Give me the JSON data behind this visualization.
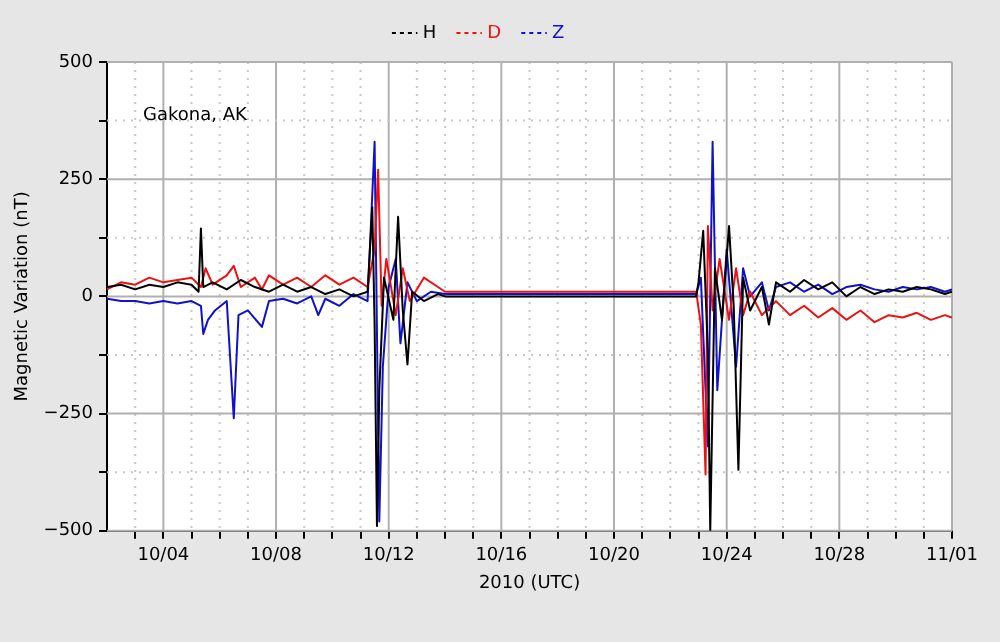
{
  "chart_data": {
    "type": "line",
    "xlabel": "2010 (UTC)",
    "ylabel": "Magnetic Variation (nT)",
    "annotations": [
      "Gakona, AK"
    ],
    "xlim": [
      "2010-10-02",
      "2010-11-01"
    ],
    "xticks": [
      {
        "value": "2010-10-03",
        "label": null
      },
      {
        "value": "2010-10-04",
        "label": "10/04"
      },
      {
        "value": "2010-10-05",
        "label": null
      },
      {
        "value": "2010-10-06",
        "label": null
      },
      {
        "value": "2010-10-07",
        "label": null
      },
      {
        "value": "2010-10-08",
        "label": "10/08"
      },
      {
        "value": "2010-10-09",
        "label": null
      },
      {
        "value": "2010-10-10",
        "label": null
      },
      {
        "value": "2010-10-11",
        "label": null
      },
      {
        "value": "2010-10-12",
        "label": "10/12"
      },
      {
        "value": "2010-10-13",
        "label": null
      },
      {
        "value": "2010-10-14",
        "label": null
      },
      {
        "value": "2010-10-15",
        "label": null
      },
      {
        "value": "2010-10-16",
        "label": "10/16"
      },
      {
        "value": "2010-10-17",
        "label": null
      },
      {
        "value": "2010-10-18",
        "label": null
      },
      {
        "value": "2010-10-19",
        "label": null
      },
      {
        "value": "2010-10-20",
        "label": "10/20"
      },
      {
        "value": "2010-10-21",
        "label": null
      },
      {
        "value": "2010-10-22",
        "label": null
      },
      {
        "value": "2010-10-23",
        "label": null
      },
      {
        "value": "2010-10-24",
        "label": "10/24"
      },
      {
        "value": "2010-10-25",
        "label": null
      },
      {
        "value": "2010-10-26",
        "label": null
      },
      {
        "value": "2010-10-27",
        "label": null
      },
      {
        "value": "2010-10-28",
        "label": "10/28"
      },
      {
        "value": "2010-10-29",
        "label": null
      },
      {
        "value": "2010-10-30",
        "label": null
      },
      {
        "value": "2010-10-31",
        "label": null
      },
      {
        "value": "2010-11-01",
        "label": "11/01"
      }
    ],
    "ylim": [
      -500,
      500
    ],
    "yticks": [
      {
        "value": -500,
        "label": "−500"
      },
      {
        "value": -375,
        "label": null
      },
      {
        "value": -250,
        "label": "−250"
      },
      {
        "value": -125,
        "label": null
      },
      0,
      {
        "value": 125,
        "label": null
      },
      250,
      {
        "value": 375,
        "label": null
      },
      500
    ],
    "grid": true,
    "legend": "top",
    "marker": "none",
    "line_style": "solid",
    "series": [
      {
        "name": "H",
        "color": "#000000",
        "x": [
          "2010-10-02T00:00",
          "2010-10-02T12:00",
          "2010-10-03T00:00",
          "2010-10-03T12:00",
          "2010-10-04T00:00",
          "2010-10-04T12:00",
          "2010-10-05T00:00",
          "2010-10-05T06:00",
          "2010-10-05T08:00",
          "2010-10-05T10:00",
          "2010-10-05T18:00",
          "2010-10-06T06:00",
          "2010-10-06T18:00",
          "2010-10-07T06:00",
          "2010-10-07T18:00",
          "2010-10-08T06:00",
          "2010-10-08T18:00",
          "2010-10-09T06:00",
          "2010-10-09T18:00",
          "2010-10-10T06:00",
          "2010-10-10T18:00",
          "2010-10-11T06:00",
          "2010-10-11T10:00",
          "2010-10-11T12:00",
          "2010-10-11T14:00",
          "2010-10-11T16:00",
          "2010-10-11T20:00",
          "2010-10-12T04:00",
          "2010-10-12T08:00",
          "2010-10-12T12:00",
          "2010-10-12T16:00",
          "2010-10-12T20:00",
          "2010-10-13T06:00",
          "2010-10-13T18:00",
          "2010-10-14T00:00",
          "2010-10-22T22:00",
          "2010-10-23T00:00",
          "2010-10-23T04:00",
          "2010-10-23T08:00",
          "2010-10-23T10:00",
          "2010-10-23T14:00",
          "2010-10-23T20:00",
          "2010-10-24T02:00",
          "2010-10-24T06:00",
          "2010-10-24T10:00",
          "2010-10-24T14:00",
          "2010-10-24T20:00",
          "2010-10-25T06:00",
          "2010-10-25T12:00",
          "2010-10-25T18:00",
          "2010-10-26T06:00",
          "2010-10-26T18:00",
          "2010-10-27T06:00",
          "2010-10-27T18:00",
          "2010-10-28T06:00",
          "2010-10-28T18:00",
          "2010-10-29T06:00",
          "2010-10-29T18:00",
          "2010-10-30T06:00",
          "2010-10-30T18:00",
          "2010-10-31T06:00",
          "2010-10-31T18:00",
          "2010-11-01T00:00"
        ],
        "values": [
          20,
          25,
          15,
          25,
          20,
          30,
          25,
          10,
          145,
          20,
          30,
          15,
          35,
          20,
          10,
          25,
          10,
          20,
          5,
          15,
          0,
          10,
          190,
          -60,
          -490,
          -200,
          40,
          -50,
          170,
          -30,
          -145,
          10,
          -10,
          5,
          0,
          0,
          30,
          140,
          -120,
          -500,
          60,
          -50,
          150,
          -20,
          -370,
          40,
          -30,
          20,
          -60,
          30,
          10,
          35,
          15,
          30,
          0,
          20,
          5,
          15,
          10,
          20,
          15,
          5,
          10
        ]
      },
      {
        "name": "D",
        "color": "#ee1111",
        "x": [
          "2010-10-02T00:00",
          "2010-10-02T12:00",
          "2010-10-03T00:00",
          "2010-10-03T12:00",
          "2010-10-04T00:00",
          "2010-10-04T12:00",
          "2010-10-05T00:00",
          "2010-10-05T08:00",
          "2010-10-05T12:00",
          "2010-10-05T18:00",
          "2010-10-06T06:00",
          "2010-10-06T12:00",
          "2010-10-06T18:00",
          "2010-10-07T06:00",
          "2010-10-07T12:00",
          "2010-10-07T18:00",
          "2010-10-08T06:00",
          "2010-10-08T18:00",
          "2010-10-09T06:00",
          "2010-10-09T18:00",
          "2010-10-10T06:00",
          "2010-10-10T18:00",
          "2010-10-11T06:00",
          "2010-10-11T12:00",
          "2010-10-11T15:00",
          "2010-10-11T18:00",
          "2010-10-11T22:00",
          "2010-10-12T06:00",
          "2010-10-12T12:00",
          "2010-10-12T18:00",
          "2010-10-13T06:00",
          "2010-10-13T18:00",
          "2010-10-14T00:00",
          "2010-10-22T22:00",
          "2010-10-23T02:00",
          "2010-10-23T06:00",
          "2010-10-23T08:00",
          "2010-10-23T12:00",
          "2010-10-23T18:00",
          "2010-10-24T02:00",
          "2010-10-24T08:00",
          "2010-10-24T14:00",
          "2010-10-24T20:00",
          "2010-10-25T06:00",
          "2010-10-25T18:00",
          "2010-10-26T06:00",
          "2010-10-26T18:00",
          "2010-10-27T06:00",
          "2010-10-27T18:00",
          "2010-10-28T06:00",
          "2010-10-28T18:00",
          "2010-10-29T06:00",
          "2010-10-29T18:00",
          "2010-10-30T06:00",
          "2010-10-30T18:00",
          "2010-10-31T06:00",
          "2010-10-31T18:00",
          "2010-11-01T00:00"
        ],
        "values": [
          15,
          30,
          25,
          40,
          30,
          35,
          40,
          20,
          60,
          25,
          45,
          65,
          20,
          40,
          15,
          45,
          25,
          40,
          20,
          45,
          25,
          40,
          20,
          100,
          270,
          -20,
          80,
          -40,
          60,
          -10,
          40,
          20,
          10,
          10,
          -60,
          -380,
          150,
          -30,
          80,
          -50,
          60,
          -40,
          10,
          -40,
          -10,
          -40,
          -20,
          -45,
          -25,
          -50,
          -30,
          -55,
          -40,
          -45,
          -35,
          -50,
          -40,
          -45
        ]
      },
      {
        "name": "Z",
        "color": "#1111cc",
        "x": [
          "2010-10-02T00:00",
          "2010-10-02T12:00",
          "2010-10-03T00:00",
          "2010-10-03T12:00",
          "2010-10-04T00:00",
          "2010-10-04T12:00",
          "2010-10-05T00:00",
          "2010-10-05T08:00",
          "2010-10-05T10:00",
          "2010-10-05T14:00",
          "2010-10-05T20:00",
          "2010-10-06T06:00",
          "2010-10-06T12:00",
          "2010-10-06T16:00",
          "2010-10-07T00:00",
          "2010-10-07T12:00",
          "2010-10-07T18:00",
          "2010-10-08T06:00",
          "2010-10-08T18:00",
          "2010-10-09T06:00",
          "2010-10-09T12:00",
          "2010-10-09T18:00",
          "2010-10-10T06:00",
          "2010-10-10T18:00",
          "2010-10-11T06:00",
          "2010-10-11T12:00",
          "2010-10-11T16:00",
          "2010-10-11T19:00",
          "2010-10-12T00:00",
          "2010-10-12T06:00",
          "2010-10-12T10:00",
          "2010-10-12T16:00",
          "2010-10-13T00:00",
          "2010-10-13T12:00",
          "2010-10-14T00:00",
          "2010-10-22T22:00",
          "2010-10-23T02:00",
          "2010-10-23T08:00",
          "2010-10-23T12:00",
          "2010-10-23T16:00",
          "2010-10-24T00:00",
          "2010-10-24T08:00",
          "2010-10-24T14:00",
          "2010-10-24T20:00",
          "2010-10-25T06:00",
          "2010-10-25T12:00",
          "2010-10-25T18:00",
          "2010-10-26T06:00",
          "2010-10-26T18:00",
          "2010-10-27T06:00",
          "2010-10-27T18:00",
          "2010-10-28T06:00",
          "2010-10-28T18:00",
          "2010-10-29T06:00",
          "2010-10-29T18:00",
          "2010-10-30T06:00",
          "2010-10-30T18:00",
          "2010-10-31T06:00",
          "2010-10-31T18:00",
          "2010-11-01T00:00"
        ],
        "values": [
          -5,
          -10,
          -10,
          -15,
          -10,
          -15,
          -10,
          -20,
          -80,
          -50,
          -30,
          -10,
          -260,
          -40,
          -30,
          -65,
          -10,
          -5,
          -15,
          0,
          -40,
          -5,
          -20,
          5,
          -10,
          330,
          -480,
          -150,
          20,
          80,
          -100,
          30,
          -10,
          10,
          5,
          5,
          40,
          -320,
          330,
          -200,
          100,
          -150,
          60,
          0,
          30,
          -30,
          20,
          30,
          10,
          25,
          5,
          20,
          25,
          15,
          10,
          20,
          15,
          20,
          10,
          15
        ]
      }
    ]
  }
}
